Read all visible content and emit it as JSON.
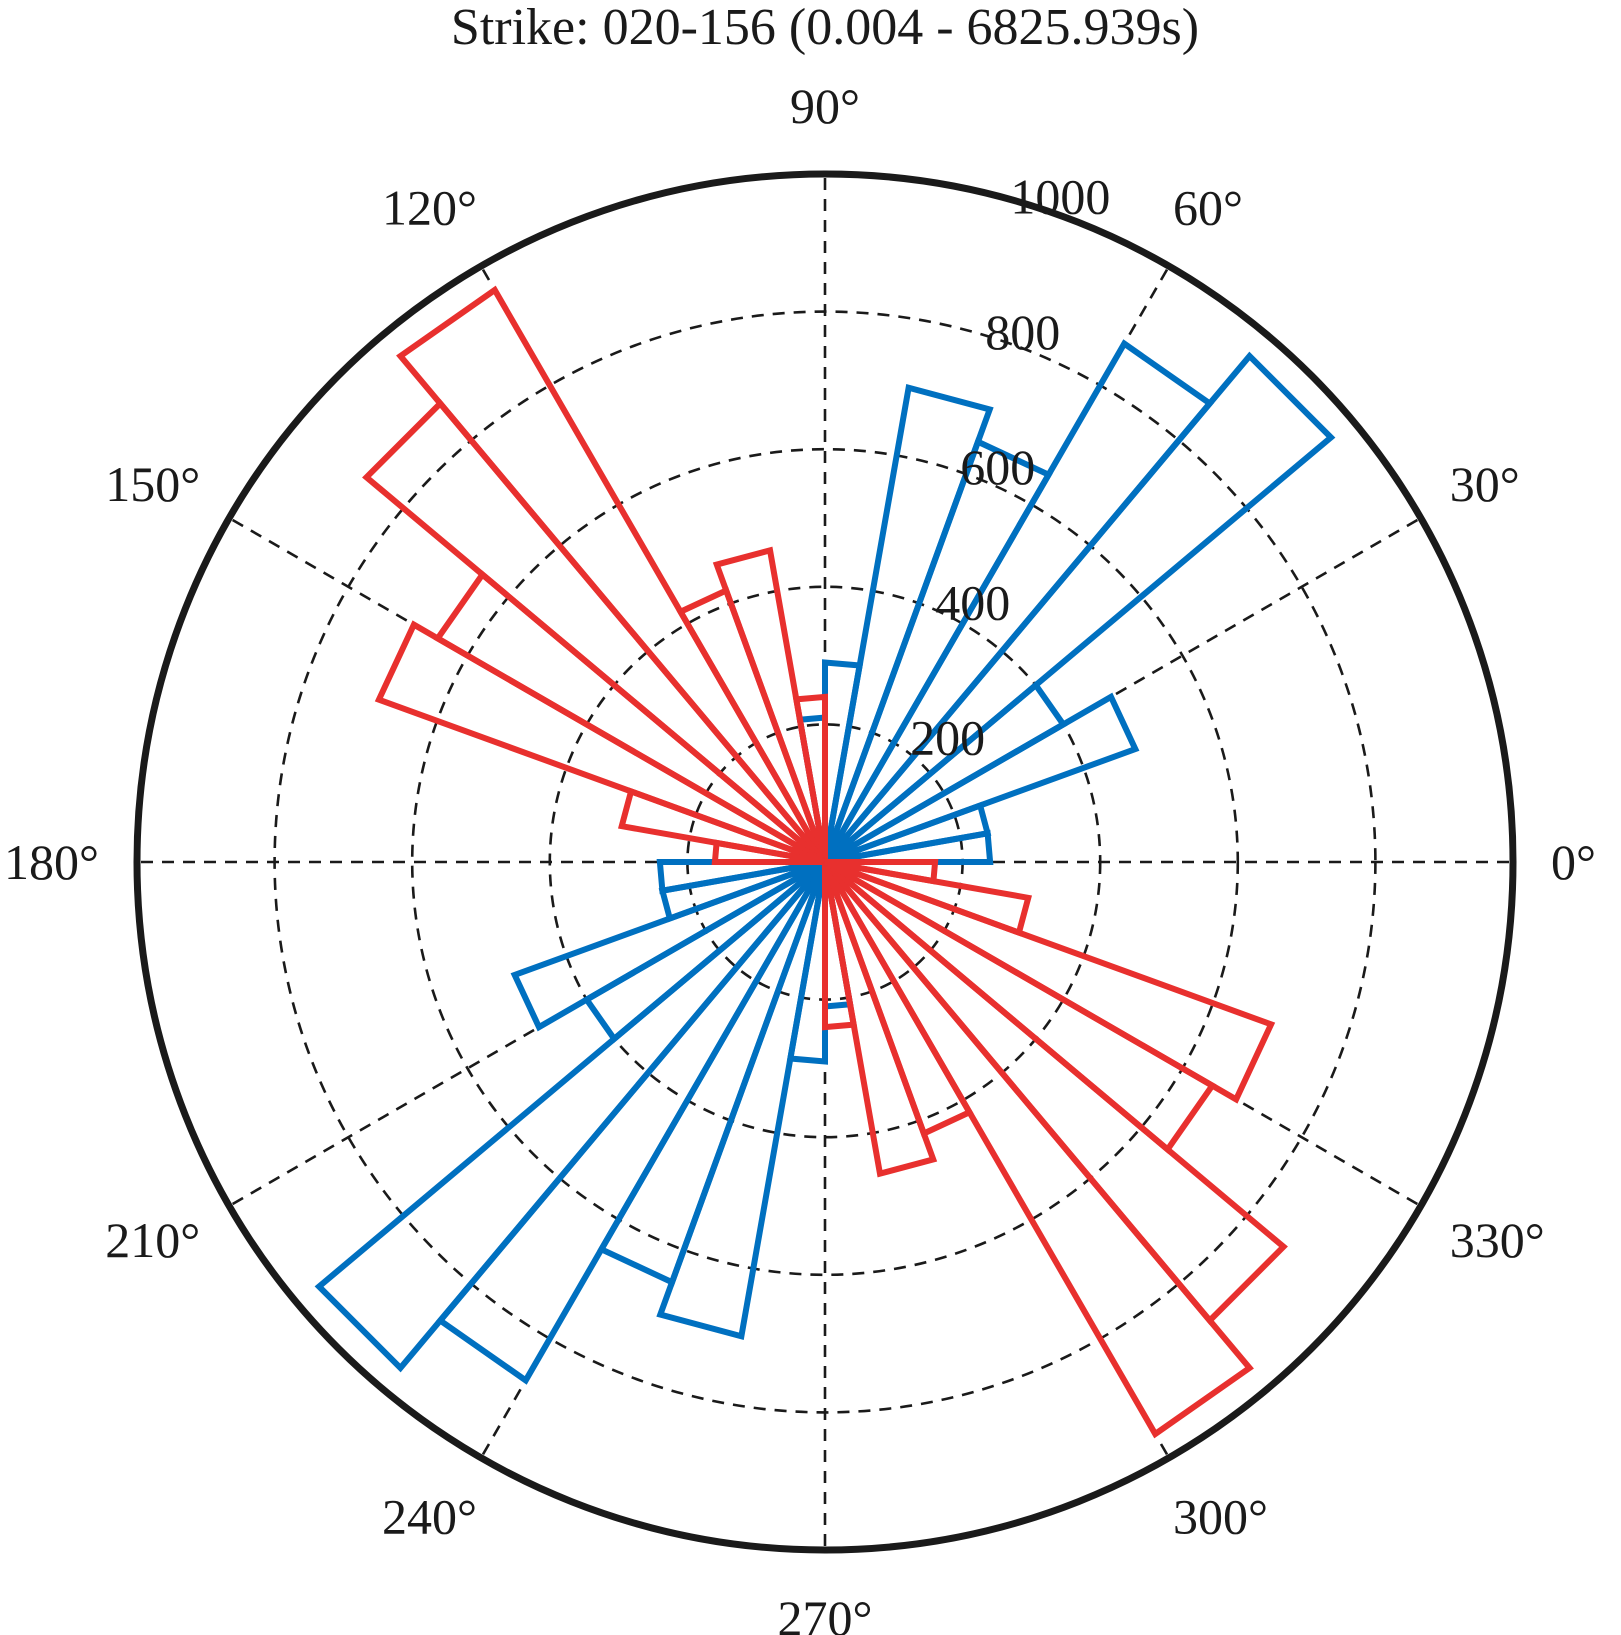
{
  "chart_data": {
    "type": "rose",
    "title": "Strike: 020-156 (0.004 - 6825.939s)",
    "angular_ticks": [
      "0°",
      "30°",
      "60°",
      "90°",
      "120°",
      "150°",
      "180°",
      "210°",
      "240°",
      "270°",
      "300°",
      "330°"
    ],
    "angular_tick_values": [
      0,
      30,
      60,
      90,
      120,
      150,
      180,
      210,
      240,
      270,
      300,
      330
    ],
    "radial_ticks": [
      200,
      400,
      600,
      800,
      1000
    ],
    "radial_tick_labels": [
      "200",
      "400",
      "600",
      "800",
      "1000"
    ],
    "rlim": [
      0,
      1000
    ],
    "grid": true,
    "series": [
      {
        "color": "#0070c0",
        "bins": [
          {
            "from": 0,
            "to": 10,
            "value": 240
          },
          {
            "from": 10,
            "to": 20,
            "value": 240
          },
          {
            "from": 20,
            "to": 30,
            "value": 480
          },
          {
            "from": 30,
            "to": 40,
            "value": 400
          },
          {
            "from": 40,
            "to": 50,
            "value": 960
          },
          {
            "from": 50,
            "to": 60,
            "value": 870
          },
          {
            "from": 60,
            "to": 70,
            "value": 650
          },
          {
            "from": 70,
            "to": 80,
            "value": 700
          },
          {
            "from": 80,
            "to": 90,
            "value": 290
          },
          {
            "from": 90,
            "to": 100,
            "value": 210
          },
          {
            "from": 180,
            "to": 190,
            "value": 240
          },
          {
            "from": 190,
            "to": 200,
            "value": 240
          },
          {
            "from": 200,
            "to": 210,
            "value": 480
          },
          {
            "from": 210,
            "to": 220,
            "value": 400
          },
          {
            "from": 220,
            "to": 230,
            "value": 960
          },
          {
            "from": 230,
            "to": 240,
            "value": 870
          },
          {
            "from": 240,
            "to": 250,
            "value": 650
          },
          {
            "from": 250,
            "to": 260,
            "value": 700
          },
          {
            "from": 260,
            "to": 270,
            "value": 290
          },
          {
            "from": 270,
            "to": 280,
            "value": 210
          }
        ]
      },
      {
        "color": "#e8302e",
        "bins": [
          {
            "from": 90,
            "to": 100,
            "value": 240
          },
          {
            "from": 100,
            "to": 110,
            "value": 460
          },
          {
            "from": 110,
            "to": 120,
            "value": 420
          },
          {
            "from": 120,
            "to": 130,
            "value": 960
          },
          {
            "from": 130,
            "to": 140,
            "value": 870
          },
          {
            "from": 140,
            "to": 150,
            "value": 650
          },
          {
            "from": 150,
            "to": 160,
            "value": 690
          },
          {
            "from": 160,
            "to": 170,
            "value": 300
          },
          {
            "from": 170,
            "to": 180,
            "value": 160
          },
          {
            "from": 270,
            "to": 280,
            "value": 240
          },
          {
            "from": 280,
            "to": 290,
            "value": 460
          },
          {
            "from": 290,
            "to": 300,
            "value": 420
          },
          {
            "from": 300,
            "to": 310,
            "value": 960
          },
          {
            "from": 310,
            "to": 320,
            "value": 870
          },
          {
            "from": 320,
            "to": 330,
            "value": 650
          },
          {
            "from": 330,
            "to": 340,
            "value": 690
          },
          {
            "from": 340,
            "to": 350,
            "value": 300
          },
          {
            "from": 350,
            "to": 360,
            "value": 160
          }
        ]
      }
    ]
  }
}
